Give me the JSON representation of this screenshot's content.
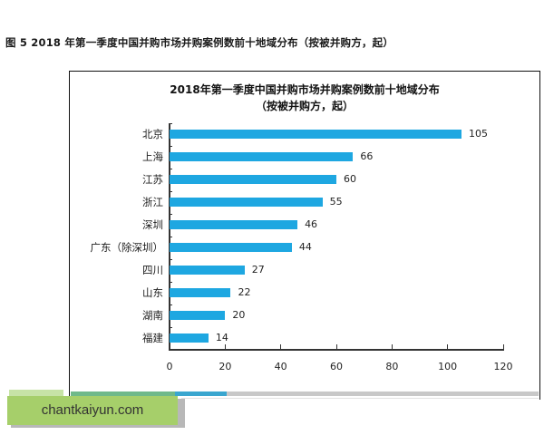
{
  "figure": {
    "caption": "图 5   2018 年第一季度中国并购市场并购案例数前十地域分布（按被并购方，起）"
  },
  "chart_data": {
    "type": "bar",
    "orientation": "horizontal",
    "title": "2018年第一季度中国并购市场并购案例数前十地域分布",
    "subtitle": "（按被并购方，起）",
    "categories": [
      "北京",
      "上海",
      "江苏",
      "浙江",
      "深圳",
      "广东（除深圳）",
      "四川",
      "山东",
      "湖南",
      "福建"
    ],
    "values": [
      105,
      66,
      60,
      55,
      46,
      44,
      27,
      22,
      20,
      14
    ],
    "xlabel": "",
    "ylabel": "",
    "xlim": [
      0,
      120
    ],
    "xticks": [
      "0",
      "20",
      "40",
      "60",
      "80",
      "100",
      "120"
    ],
    "grid": false,
    "legend": null,
    "bar_color": "#1ea7e1",
    "data_labels": [
      "105",
      "66",
      "60",
      "55",
      "46",
      "44",
      "27",
      "22",
      "20",
      "14"
    ]
  },
  "watermark": {
    "text": "chantkaiyun.com"
  }
}
